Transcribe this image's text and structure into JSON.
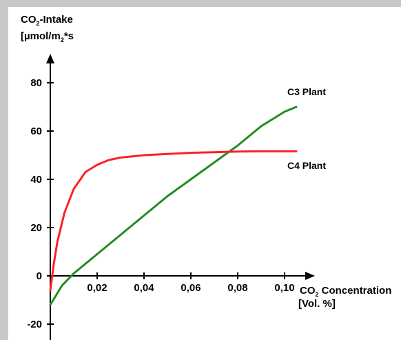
{
  "chart_data": {
    "type": "line",
    "title": "",
    "ylabel": {
      "line1_prefix": "CO",
      "line1_sub": "2",
      "line1_suffix": "-Intake",
      "line2_prefix": "[µmol/m",
      "line2_sub": "2",
      "line2_suffix": "*s"
    },
    "xlabel": {
      "line1_prefix": "CO",
      "line1_sub": "2",
      "line1_suffix": " Concentration",
      "line2": "[Vol. %]"
    },
    "xlim": [
      0,
      0.115
    ],
    "ylim": [
      -22,
      92
    ],
    "x_ticks": [
      {
        "value": 0.02,
        "label": "0,02"
      },
      {
        "value": 0.04,
        "label": "0,04"
      },
      {
        "value": 0.06,
        "label": "0,06"
      },
      {
        "value": 0.08,
        "label": "0,08"
      },
      {
        "value": 0.1,
        "label": "0,10"
      }
    ],
    "y_ticks": [
      {
        "value": 80,
        "label": "80"
      },
      {
        "value": 60,
        "label": "60"
      },
      {
        "value": 40,
        "label": "40"
      },
      {
        "value": 20,
        "label": "20"
      },
      {
        "value": 0,
        "label": "0"
      },
      {
        "value": -20,
        "label": "-20"
      }
    ],
    "grid": false,
    "series": [
      {
        "name": "C3 Plant",
        "color": "#228b22",
        "x": [
          0.0,
          0.005,
          0.01,
          0.02,
          0.03,
          0.04,
          0.05,
          0.06,
          0.07,
          0.08,
          0.09,
          0.1,
          0.105
        ],
        "y": [
          -12,
          -4,
          1,
          9,
          17,
          25,
          33,
          40,
          47,
          54,
          62,
          68,
          70
        ]
      },
      {
        "name": "C4 Plant",
        "color": "#ff2020",
        "x": [
          0.0,
          0.0015,
          0.003,
          0.006,
          0.01,
          0.015,
          0.02,
          0.025,
          0.03,
          0.04,
          0.05,
          0.06,
          0.07,
          0.08,
          0.09,
          0.1,
          0.105
        ],
        "y": [
          -6,
          5,
          14,
          26,
          36,
          43,
          46,
          48,
          49,
          50,
          50.5,
          51,
          51.2,
          51.5,
          51.6,
          51.6,
          51.6
        ]
      }
    ]
  }
}
